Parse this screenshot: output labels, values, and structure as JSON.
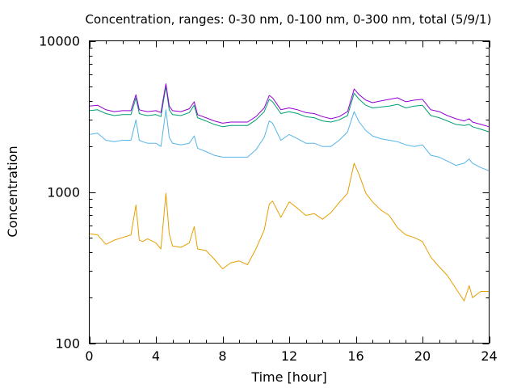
{
  "chart_data": {
    "type": "line",
    "title": "Concentration, ranges: 0-30 nm, 0-100 nm, 0-300 nm, total (5/9/1)",
    "xlabel": "Time [hour]",
    "ylabel": "Concentration",
    "xlim": [
      0,
      24
    ],
    "ylim": [
      100,
      10000
    ],
    "yscale": "log",
    "xticks": [
      "0",
      "4",
      "8",
      "12",
      "16",
      "20",
      "24"
    ],
    "yticks": [
      "100",
      "1000",
      "10000"
    ],
    "grid": false,
    "legend": "none",
    "series": [
      {
        "color": "#e69f00",
        "x": [
          0,
          0.5,
          1,
          1.5,
          2,
          2.5,
          2.8,
          3,
          3.2,
          3.5,
          4,
          4.3,
          4.6,
          4.8,
          5,
          5.5,
          6,
          6.3,
          6.5,
          7,
          7.5,
          8,
          8.5,
          9,
          9.5,
          10,
          10.5,
          10.8,
          11,
          11.5,
          12,
          12.5,
          13,
          13.5,
          14,
          14.5,
          15,
          15.5,
          15.9,
          16.2,
          16.6,
          17,
          17.5,
          18,
          18.5,
          19,
          19.5,
          20,
          20.5,
          21,
          21.5,
          22,
          22.5,
          22.8,
          23,
          23.5,
          24
        ],
        "y": [
          530,
          520,
          450,
          480,
          500,
          520,
          820,
          480,
          470,
          490,
          460,
          420,
          980,
          530,
          440,
          430,
          460,
          590,
          420,
          410,
          360,
          310,
          340,
          350,
          330,
          420,
          560,
          830,
          870,
          680,
          860,
          780,
          700,
          720,
          660,
          730,
          850,
          980,
          1550,
          1300,
          980,
          860,
          760,
          700,
          580,
          520,
          500,
          470,
          370,
          320,
          280,
          230,
          190,
          240,
          200,
          220,
          220
        ]
      },
      {
        "color": "#56b4e9",
        "x": [
          0,
          0.5,
          1,
          1.5,
          2,
          2.5,
          2.8,
          3,
          3.2,
          3.5,
          4,
          4.3,
          4.6,
          4.8,
          5,
          5.5,
          6,
          6.3,
          6.5,
          7,
          7.5,
          8,
          8.5,
          9,
          9.5,
          10,
          10.5,
          10.8,
          11,
          11.5,
          12,
          12.5,
          13,
          13.5,
          14,
          14.5,
          15,
          15.5,
          15.9,
          16.2,
          16.6,
          17,
          17.5,
          18,
          18.5,
          19,
          19.5,
          20,
          20.5,
          21,
          21.5,
          22,
          22.5,
          22.8,
          23,
          23.5,
          24
        ],
        "y": [
          2400,
          2450,
          2200,
          2150,
          2200,
          2200,
          3000,
          2200,
          2150,
          2100,
          2100,
          2000,
          3500,
          2300,
          2100,
          2050,
          2100,
          2350,
          1950,
          1850,
          1750,
          1700,
          1700,
          1700,
          1700,
          1900,
          2300,
          2950,
          2850,
          2200,
          2400,
          2250,
          2100,
          2100,
          2000,
          2000,
          2200,
          2500,
          3400,
          2900,
          2550,
          2350,
          2250,
          2200,
          2150,
          2050,
          2000,
          2050,
          1750,
          1700,
          1600,
          1500,
          1550,
          1650,
          1550,
          1450,
          1380
        ]
      },
      {
        "color": "#009e73",
        "x": [
          0,
          0.5,
          1,
          1.5,
          2,
          2.5,
          2.8,
          3,
          3.2,
          3.5,
          4,
          4.3,
          4.6,
          4.8,
          5,
          5.5,
          6,
          6.3,
          6.5,
          7,
          7.5,
          8,
          8.5,
          9,
          9.5,
          10,
          10.5,
          10.8,
          11,
          11.5,
          12,
          12.5,
          13,
          13.5,
          14,
          14.5,
          15,
          15.5,
          15.9,
          16.2,
          16.6,
          17,
          17.5,
          18,
          18.5,
          19,
          19.5,
          20,
          20.5,
          21,
          21.5,
          22,
          22.5,
          22.8,
          23,
          23.5,
          24
        ],
        "y": [
          3450,
          3500,
          3300,
          3200,
          3250,
          3250,
          4200,
          3300,
          3250,
          3200,
          3250,
          3150,
          5000,
          3500,
          3250,
          3200,
          3350,
          3750,
          3100,
          2950,
          2800,
          2700,
          2750,
          2750,
          2750,
          3000,
          3400,
          4100,
          3950,
          3300,
          3400,
          3300,
          3150,
          3100,
          2950,
          2900,
          3000,
          3200,
          4500,
          4100,
          3750,
          3600,
          3650,
          3700,
          3800,
          3600,
          3700,
          3750,
          3200,
          3100,
          2950,
          2800,
          2750,
          2800,
          2700,
          2600,
          2500
        ]
      },
      {
        "color": "#9400d3",
        "x": [
          0,
          0.5,
          1,
          1.5,
          2,
          2.5,
          2.8,
          3,
          3.2,
          3.5,
          4,
          4.3,
          4.6,
          4.8,
          5,
          5.5,
          6,
          6.3,
          6.5,
          7,
          7.5,
          8,
          8.5,
          9,
          9.5,
          10,
          10.5,
          10.8,
          11,
          11.5,
          12,
          12.5,
          13,
          13.5,
          14,
          14.5,
          15,
          15.5,
          15.9,
          16.2,
          16.6,
          17,
          17.5,
          18,
          18.5,
          19,
          19.5,
          20,
          20.5,
          21,
          21.5,
          22,
          22.5,
          22.8,
          23,
          23.5,
          24
        ],
        "y": [
          3700,
          3750,
          3500,
          3400,
          3450,
          3450,
          4400,
          3500,
          3450,
          3400,
          3450,
          3350,
          5200,
          3700,
          3450,
          3400,
          3550,
          3950,
          3250,
          3100,
          2950,
          2850,
          2900,
          2900,
          2900,
          3150,
          3600,
          4350,
          4200,
          3500,
          3600,
          3500,
          3350,
          3300,
          3150,
          3050,
          3150,
          3400,
          4800,
          4400,
          4050,
          3900,
          4000,
          4100,
          4200,
          3950,
          4050,
          4100,
          3500,
          3400,
          3200,
          3050,
          2950,
          3050,
          2900,
          2800,
          2700
        ]
      }
    ]
  }
}
